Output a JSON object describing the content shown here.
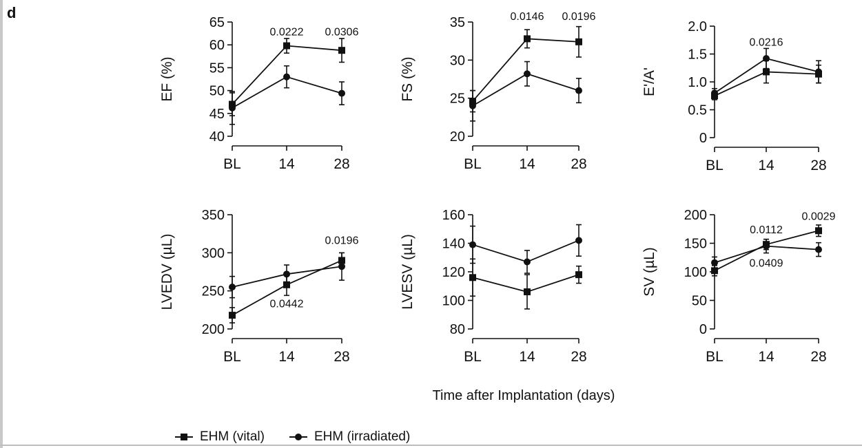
{
  "figure": {
    "panel_letter": "d",
    "x_title": "Time after Implantation (days)"
  },
  "legend": [
    {
      "name": "EHM (vital)",
      "marker": "square",
      "color": "#111111"
    },
    {
      "name": "EHM (irradiated)",
      "marker": "circle",
      "color": "#111111"
    }
  ],
  "chart_data": [
    {
      "type": "line",
      "ylabel": "EF (%)",
      "categories": [
        "BL",
        "14",
        "28"
      ],
      "ylim": [
        40,
        65
      ],
      "yticks": [
        40,
        45,
        50,
        55,
        60,
        65
      ],
      "series": [
        {
          "name": "EHM (vital)",
          "marker": "square",
          "values": [
            47.0,
            59.8,
            58.8
          ],
          "err": [
            2.5,
            1.6,
            2.6
          ]
        },
        {
          "name": "EHM (irradiated)",
          "marker": "circle",
          "values": [
            46.2,
            53.0,
            49.4
          ],
          "err": [
            3.6,
            2.4,
            2.5
          ]
        }
      ],
      "annotations": [
        {
          "text": "0.0222",
          "x": "14",
          "y": 63.0
        },
        {
          "text": "0.0306",
          "x": "28",
          "y": 63.0
        }
      ]
    },
    {
      "type": "line",
      "ylabel": "FS (%)",
      "categories": [
        "BL",
        "14",
        "28"
      ],
      "ylim": [
        20,
        35
      ],
      "yticks": [
        20,
        25,
        30,
        35
      ],
      "series": [
        {
          "name": "EHM (vital)",
          "marker": "square",
          "values": [
            24.6,
            32.8,
            32.4
          ],
          "err": [
            1.4,
            1.2,
            2.0
          ]
        },
        {
          "name": "EHM (irradiated)",
          "marker": "circle",
          "values": [
            24.0,
            28.2,
            26.0
          ],
          "err": [
            2.0,
            1.6,
            1.6
          ]
        }
      ],
      "annotations": [
        {
          "text": "0.0146",
          "x": "14",
          "y": 35.8
        },
        {
          "text": "0.0196",
          "x": "28",
          "y": 35.8
        }
      ]
    },
    {
      "type": "line",
      "ylabel": "E'/A'",
      "categories": [
        "BL",
        "14",
        "28"
      ],
      "ylim": [
        0,
        2.0
      ],
      "yticks": [
        0,
        0.5,
        1.0,
        1.5,
        2.0
      ],
      "tick_labels": [
        "0",
        "0.5",
        "1.0",
        "1.5",
        "2.0"
      ],
      "series": [
        {
          "name": "EHM (vital)",
          "marker": "square",
          "values": [
            0.75,
            1.18,
            1.14
          ],
          "err": [
            0.07,
            0.2,
            0.16
          ]
        },
        {
          "name": "EHM (irradiated)",
          "marker": "circle",
          "values": [
            0.8,
            1.42,
            1.18
          ],
          "err": [
            0.08,
            0.18,
            0.2
          ]
        }
      ],
      "annotations": [
        {
          "text": "0.0216",
          "x": "14",
          "y": 1.72
        }
      ]
    },
    {
      "type": "line",
      "ylabel": "LVEDV (µL)",
      "categories": [
        "BL",
        "14",
        "28"
      ],
      "ylim": [
        200,
        350
      ],
      "yticks": [
        200,
        250,
        300,
        350
      ],
      "series": [
        {
          "name": "EHM (vital)",
          "marker": "square",
          "values": [
            218,
            258,
            290
          ],
          "err": [
            10,
            14,
            10
          ]
        },
        {
          "name": "EHM (irradiated)",
          "marker": "circle",
          "values": [
            255,
            272,
            282
          ],
          "err": [
            14,
            12,
            18
          ]
        }
      ],
      "annotations": [
        {
          "text": "0.0442",
          "x": "14",
          "y": 234
        },
        {
          "text": "0.0196",
          "x": "28",
          "y": 317
        }
      ]
    },
    {
      "type": "line",
      "ylabel": "LVESV (µL)",
      "categories": [
        "BL",
        "14",
        "28"
      ],
      "ylim": [
        80,
        160
      ],
      "yticks": [
        80,
        100,
        120,
        140,
        160
      ],
      "series": [
        {
          "name": "EHM (vital)",
          "marker": "square",
          "values": [
            116,
            106,
            118
          ],
          "err": [
            13,
            12,
            6
          ]
        },
        {
          "name": "EHM (irradiated)",
          "marker": "circle",
          "values": [
            139,
            127,
            142
          ],
          "err": [
            13,
            8,
            11
          ]
        }
      ],
      "annotations": []
    },
    {
      "type": "line",
      "ylabel": "SV (µL)",
      "categories": [
        "BL",
        "14",
        "28"
      ],
      "ylim": [
        0,
        200
      ],
      "yticks": [
        0,
        50,
        100,
        150,
        200
      ],
      "series": [
        {
          "name": "EHM (vital)",
          "marker": "square",
          "values": [
            102,
            148,
            172
          ],
          "err": [
            9,
            9,
            10
          ]
        },
        {
          "name": "EHM (irradiated)",
          "marker": "circle",
          "values": [
            116,
            145,
            139
          ],
          "err": [
            10,
            12,
            12
          ]
        }
      ],
      "annotations": [
        {
          "text": "0.0112",
          "x": "14",
          "y": 175
        },
        {
          "text": "0.0409",
          "x": "14",
          "y": 116
        },
        {
          "text": "0.0029",
          "x": "28",
          "y": 198
        }
      ]
    }
  ]
}
